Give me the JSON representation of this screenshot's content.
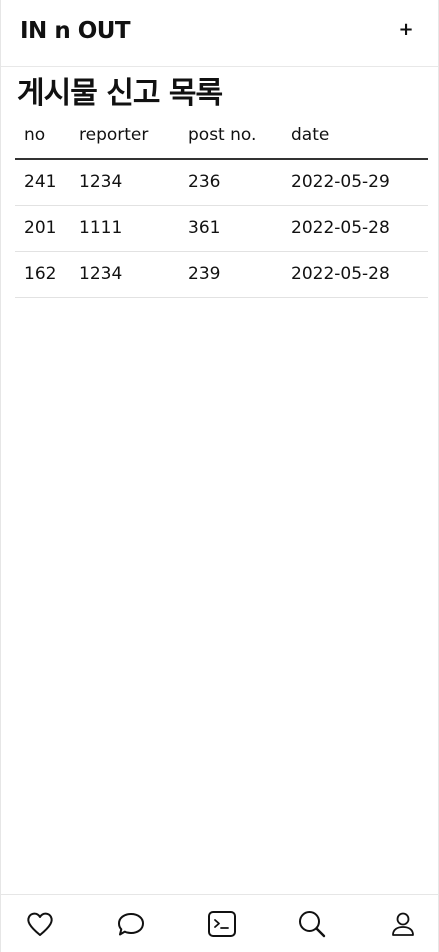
{
  "header": {
    "brand": "IN n OUT",
    "add_label": "+"
  },
  "page": {
    "title": "게시물 신고 목록"
  },
  "table": {
    "columns": [
      "no",
      "reporter",
      "post no.",
      "date"
    ],
    "rows": [
      [
        "241",
        "1234",
        "236",
        "2022-05-29"
      ],
      [
        "201",
        "1111",
        "361",
        "2022-05-28"
      ],
      [
        "162",
        "1234",
        "239",
        "2022-05-28"
      ]
    ]
  },
  "nav": {
    "items": [
      "heart-icon",
      "chat-icon",
      "terminal-icon",
      "search-icon",
      "user-icon"
    ]
  }
}
